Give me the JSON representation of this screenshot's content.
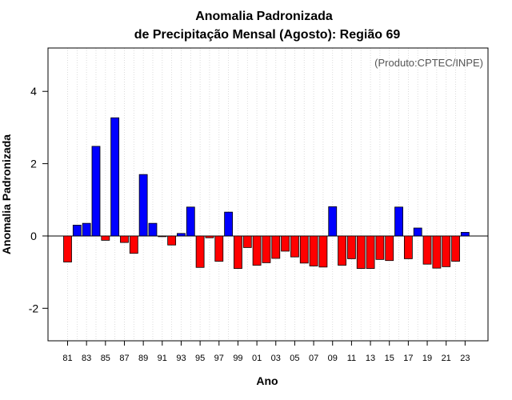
{
  "chart_data": {
    "type": "bar",
    "title": "Anomalia Padronizada",
    "subtitle": "de Precipitação Mensal (Agosto): Região 69",
    "xlabel": "Ano",
    "ylabel": "Anomalia Padronizada",
    "credit": "(Produto:CPTEC/INPE)",
    "ylim": [
      -2.9,
      5.2
    ],
    "yticks": [
      4,
      2,
      0,
      -2
    ],
    "ytick_labels": [
      "4",
      "2",
      "0",
      "-2"
    ],
    "xtick_labels": [
      "81",
      "83",
      "85",
      "87",
      "89",
      "91",
      "93",
      "95",
      "97",
      "99",
      "01",
      "03",
      "05",
      "07",
      "09",
      "11",
      "13",
      "15",
      "17",
      "19",
      "21",
      "23"
    ],
    "grid": "vertical dotted",
    "categories": [
      "1981",
      "1982",
      "1983",
      "1984",
      "1985",
      "1986",
      "1987",
      "1988",
      "1989",
      "1990",
      "1991",
      "1992",
      "1993",
      "1994",
      "1995",
      "1996",
      "1997",
      "1998",
      "1999",
      "2000",
      "2001",
      "2002",
      "2003",
      "2004",
      "2005",
      "2006",
      "2007",
      "2008",
      "2009",
      "2010",
      "2011",
      "2012",
      "2013",
      "2014",
      "2015",
      "2016",
      "2017",
      "2018",
      "2019",
      "2020",
      "2021",
      "2022",
      "2023"
    ],
    "values": [
      -0.72,
      0.3,
      0.35,
      2.48,
      -0.12,
      3.27,
      -0.18,
      -0.48,
      1.7,
      0.35,
      -0.02,
      -0.25,
      0.07,
      0.8,
      -0.87,
      -0.05,
      -0.7,
      0.66,
      -0.9,
      -0.32,
      -0.81,
      -0.74,
      -0.62,
      -0.42,
      -0.58,
      -0.75,
      -0.83,
      -0.86,
      0.81,
      -0.81,
      -0.63,
      -0.9,
      -0.9,
      -0.65,
      -0.68,
      0.8,
      -0.63,
      0.22,
      -0.78,
      -0.89,
      -0.85,
      -0.7,
      0.1
    ],
    "colors": {
      "positive": "#0000ff",
      "negative": "#ff0000",
      "outline": "#000000",
      "grid": "#d3d3d3"
    }
  }
}
